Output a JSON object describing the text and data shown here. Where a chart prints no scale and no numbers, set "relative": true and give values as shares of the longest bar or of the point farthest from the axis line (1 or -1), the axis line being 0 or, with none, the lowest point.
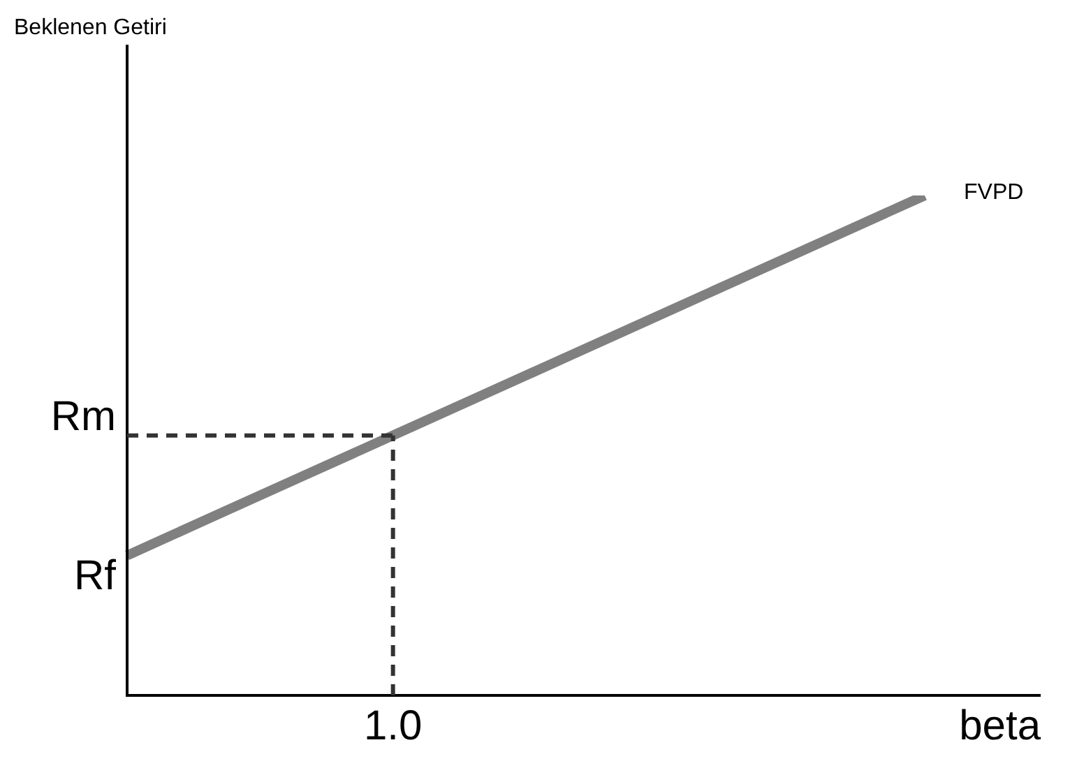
{
  "chart_data": {
    "type": "line",
    "relative": true,
    "xlabel": "beta",
    "categories": [
      null,
      null,
      null,
      null,
      null,
      null,
      null,
      null,
      null,
      null
    ],
    "series": [
      {
        "name": "FVPD",
        "color": "#808080",
        "values": [
          0.28,
          0.36,
          0.44,
          0.52,
          0.6,
          0.68,
          0.76,
          0.84,
          0.92,
          1
        ]
      }
    ],
    "ref_lines": [
      {
        "axis": "y",
        "value": 0.52,
        "label": "Rm",
        "color": "#333333",
        "line_style": "dashed"
      }
    ],
    "annotations": [
      "Beklenen Getiri",
      "Rf",
      "1.0"
    ],
    "legend": false,
    "marker": "none",
    "line_style": "solid"
  }
}
